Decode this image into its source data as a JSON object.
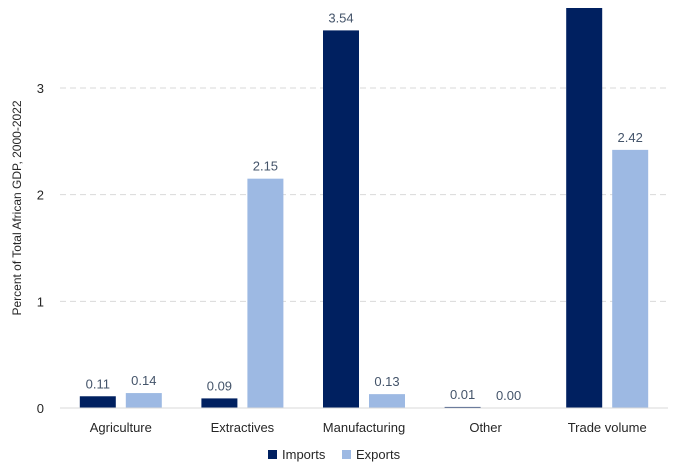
{
  "chart_data": {
    "type": "bar",
    "title": "",
    "xlabel": "",
    "ylabel": "Percent of Total African GDP, 2000-2022",
    "categories": [
      "Agriculture",
      "Extractives",
      "Manufacturing",
      "Other",
      "Trade volume"
    ],
    "series": [
      {
        "name": "Imports",
        "color": "#002060",
        "values": [
          0.11,
          0.09,
          3.54,
          0.01,
          3.75
        ],
        "labels": [
          "0.11",
          "0.09",
          "3.54",
          "0.01",
          ""
        ]
      },
      {
        "name": "Exports",
        "color": "#9DB9E3",
        "values": [
          0.14,
          2.15,
          0.13,
          0.0,
          2.42
        ],
        "labels": [
          "0.14",
          "2.15",
          "0.13",
          "0.00",
          "2.42"
        ]
      }
    ],
    "ylim": [
      0,
      3.75
    ],
    "yticks": [
      0,
      1,
      2,
      3
    ],
    "ytick_labels": [
      "0",
      "1",
      "2",
      "3"
    ],
    "grid": "horizontal dashed",
    "legend_position": "bottom"
  }
}
